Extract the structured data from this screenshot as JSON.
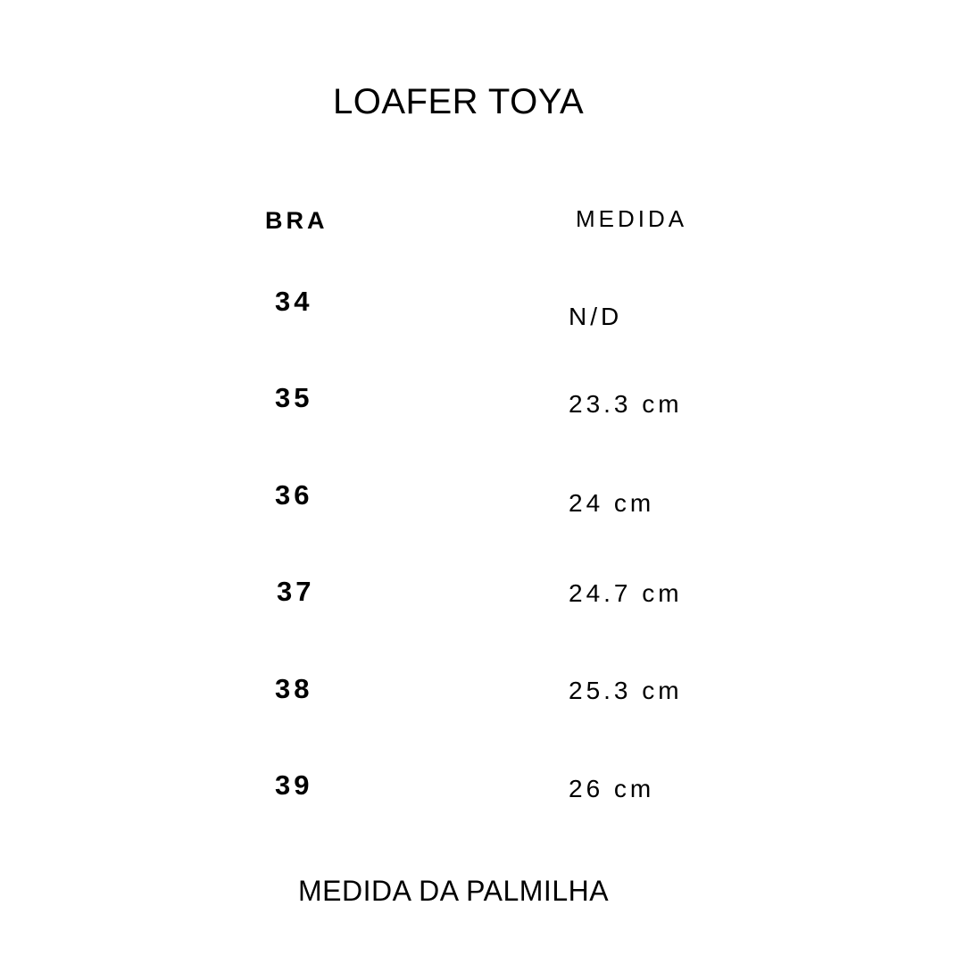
{
  "title": "LOAFER TOYA",
  "headers": {
    "size": "BRA",
    "measure": "MEDIDA"
  },
  "rows": [
    {
      "size": "34",
      "measure": "N/D"
    },
    {
      "size": "35",
      "measure": "23.3 cm"
    },
    {
      "size": "36",
      "measure": "24 cm"
    },
    {
      "size": "37",
      "measure": "24.7 cm"
    },
    {
      "size": "38",
      "measure": "25.3 cm"
    },
    {
      "size": "39",
      "measure": "26 cm"
    }
  ],
  "footer": "MEDIDA DA PALMILHA"
}
